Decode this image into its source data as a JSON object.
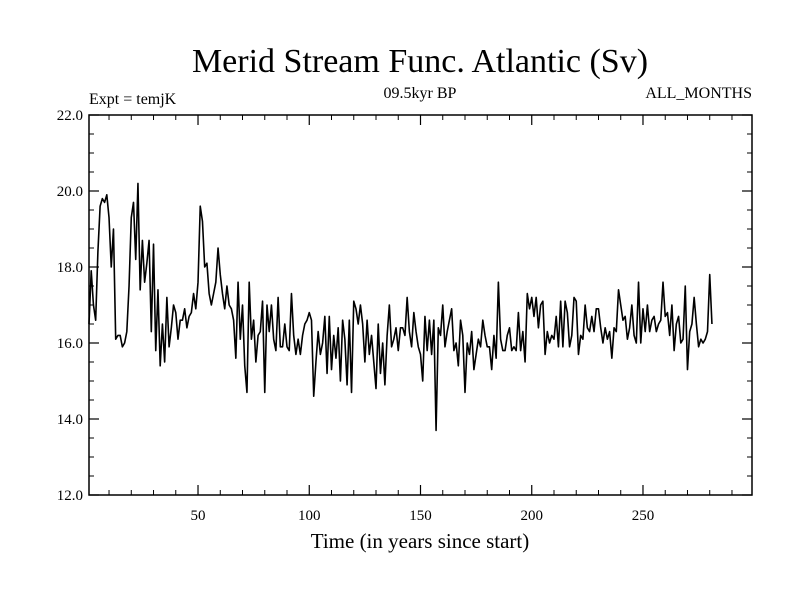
{
  "chart_data": {
    "type": "line",
    "title": "Merid Stream Func. Atlantic (Sv)",
    "subtitle_left": "Expt = temjK",
    "subtitle_center": "09.5kyr BP",
    "subtitle_right": "ALL_MONTHS",
    "xlabel": "Time (in years since start)",
    "ylabel": "",
    "xlim": [
      1,
      299
    ],
    "ylim": [
      12.0,
      22.0
    ],
    "x_ticks": [
      50,
      100,
      150,
      200,
      250
    ],
    "y_ticks": [
      "12.0",
      "14.0",
      "16.0",
      "18.0",
      "20.0",
      "22.0"
    ],
    "series": [
      {
        "name": "Merid Stream Func. Atlantic",
        "x_start": 1,
        "x_step": 1,
        "values": [
          16.5,
          17.9,
          17.0,
          16.6,
          18.4,
          19.6,
          19.8,
          19.7,
          19.9,
          19.3,
          18.0,
          19.0,
          16.1,
          16.2,
          16.2,
          15.9,
          16.0,
          16.3,
          17.5,
          19.3,
          19.7,
          18.2,
          20.2,
          17.4,
          18.7,
          17.6,
          18.1,
          18.7,
          16.3,
          18.6,
          15.8,
          17.4,
          15.4,
          16.5,
          15.5,
          17.2,
          15.9,
          16.4,
          17.0,
          16.8,
          16.1,
          16.6,
          16.6,
          16.9,
          16.4,
          16.7,
          16.8,
          17.3,
          16.9,
          17.6,
          19.6,
          19.2,
          18.0,
          18.1,
          17.3,
          17.0,
          17.3,
          17.6,
          18.5,
          17.8,
          17.3,
          16.9,
          17.5,
          17.0,
          16.9,
          16.6,
          15.6,
          17.6,
          16.1,
          17.0,
          15.4,
          14.7,
          17.6,
          16.1,
          16.6,
          15.5,
          16.2,
          16.3,
          17.1,
          14.7,
          17.0,
          16.3,
          17.0,
          16.1,
          15.8,
          17.2,
          15.9,
          15.9,
          16.5,
          15.9,
          15.8,
          17.3,
          16.2,
          15.7,
          16.1,
          15.7,
          16.2,
          16.5,
          16.6,
          16.8,
          16.6,
          14.6,
          15.5,
          16.3,
          15.7,
          16.0,
          16.7,
          15.2,
          16.7,
          15.3,
          16.2,
          15.6,
          16.4,
          15.0,
          16.6,
          16.1,
          14.9,
          16.6,
          14.7,
          17.1,
          16.9,
          16.5,
          17.0,
          16.5,
          15.5,
          16.6,
          15.7,
          16.2,
          15.5,
          14.8,
          16.5,
          15.2,
          16.0,
          14.9,
          16.2,
          17.0,
          15.9,
          16.1,
          16.4,
          15.8,
          16.4,
          16.4,
          16.2,
          17.2,
          16.3,
          15.9,
          16.8,
          16.3,
          15.9,
          15.7,
          15.0,
          16.7,
          15.8,
          16.6,
          15.7,
          16.6,
          13.7,
          16.4,
          16.2,
          17.0,
          15.9,
          16.3,
          16.6,
          16.9,
          15.8,
          16.0,
          15.4,
          16.6,
          16.2,
          14.7,
          16.0,
          15.7,
          16.3,
          15.3,
          15.7,
          16.1,
          15.9,
          16.6,
          16.2,
          15.9,
          15.9,
          15.3,
          16.2,
          15.6,
          17.6,
          16.1,
          15.8,
          15.8,
          16.2,
          16.4,
          15.8,
          15.9,
          15.8,
          16.8,
          15.8,
          16.3,
          15.5,
          17.3,
          16.9,
          17.2,
          16.7,
          17.2,
          16.4,
          17.0,
          17.1,
          15.7,
          16.3,
          16.0,
          16.2,
          16.1,
          16.7,
          15.9,
          17.1,
          15.9,
          17.1,
          16.8,
          15.9,
          16.2,
          17.2,
          17.1,
          15.7,
          16.2,
          16.1,
          17.0,
          16.4,
          16.3,
          16.7,
          16.3,
          16.9,
          16.9,
          16.4,
          16.0,
          16.4,
          16.1,
          16.3,
          15.6,
          16.4,
          16.3,
          17.4,
          17.0,
          16.6,
          16.7,
          16.1,
          16.4,
          17.0,
          16.2,
          16.0,
          17.6,
          16.0,
          16.9,
          16.3,
          17.0,
          16.3,
          16.6,
          16.7,
          16.3,
          16.5,
          16.6,
          17.6,
          16.7,
          16.8,
          16.2,
          17.0,
          15.8,
          16.5,
          16.7,
          16.0,
          16.1,
          17.5,
          15.3,
          16.3,
          16.5,
          17.2,
          16.5,
          15.9,
          16.1,
          16.0,
          16.1,
          16.3,
          17.8,
          16.5
        ]
      }
    ]
  }
}
